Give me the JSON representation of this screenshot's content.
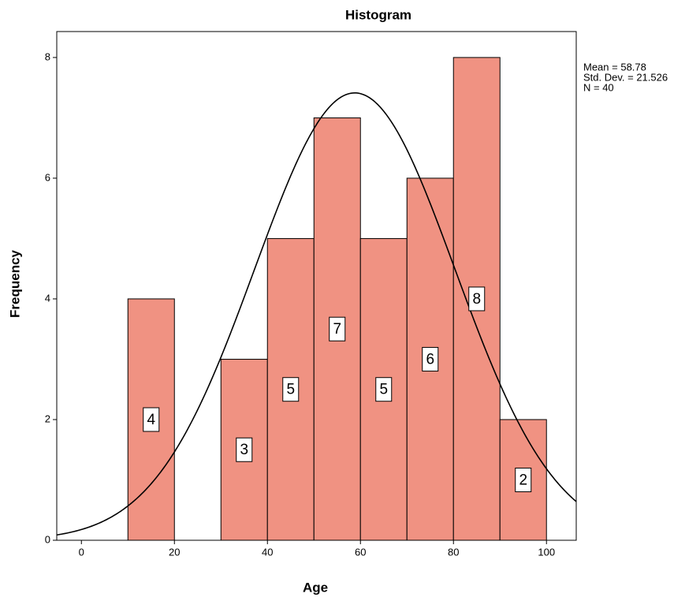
{
  "chart_data": {
    "type": "histogram",
    "title": "Histogram",
    "x_label": "Age",
    "y_label": "Frequency",
    "bins": [
      10,
      20,
      30,
      40,
      50,
      60,
      70,
      80,
      90,
      100
    ],
    "values": [
      4,
      0,
      3,
      5,
      7,
      5,
      6,
      8,
      2
    ],
    "value_labels": [
      "4",
      null,
      "3",
      "5",
      "7",
      "5",
      "6",
      "8",
      "2"
    ],
    "color": "#f09282",
    "xlim": [
      -5.3,
      106.4
    ],
    "xticks": [
      0,
      20,
      40,
      60,
      80,
      100
    ],
    "ylim": [
      0,
      8.43
    ],
    "yticks": [
      0,
      2,
      4,
      6,
      8
    ],
    "stats": [
      {
        "value": 58.78,
        "label": "Mean = 58.78"
      },
      {
        "value": 21.526,
        "label": "Std. Dev. = 21.526"
      },
      {
        "value": 40,
        "label": "N = 40"
      }
    ],
    "normal_curve": true
  }
}
